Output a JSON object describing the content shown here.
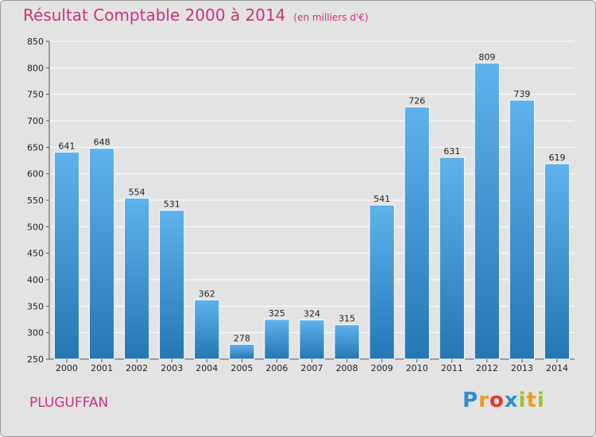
{
  "chart_data": {
    "type": "bar",
    "title": "Résultat Comptable 2000 à 2014",
    "unit_label": "(en milliers d'€)",
    "categories": [
      "2000",
      "2001",
      "2002",
      "2003",
      "2004",
      "2005",
      "2006",
      "2007",
      "2008",
      "2009",
      "2010",
      "2011",
      "2012",
      "2013",
      "2014"
    ],
    "values": [
      641,
      648,
      554,
      531,
      362,
      278,
      325,
      324,
      315,
      541,
      726,
      631,
      809,
      739,
      619
    ],
    "ylim": [
      250,
      850
    ],
    "yticks": [
      250,
      300,
      350,
      400,
      450,
      500,
      550,
      600,
      650,
      700,
      750,
      800,
      850
    ],
    "xlabel": "",
    "ylabel": "",
    "grid": true,
    "bar_color": "#3f95d6",
    "bar_color_light": "#5fb2ec",
    "bar_color_dark": "#2577b4"
  },
  "location": "PLUGUFFAN",
  "logo": {
    "letters": [
      "P",
      "r",
      "o",
      "x",
      "i",
      "t",
      "i"
    ],
    "colors": [
      "#2e8fd6",
      "#f29a1a",
      "#e8372c",
      "#2e8fd6",
      "#9cc22b",
      "#f29a1a",
      "#9cc22b"
    ]
  },
  "colors": {
    "title": "#c8347a",
    "background": "#e3e3e3"
  }
}
